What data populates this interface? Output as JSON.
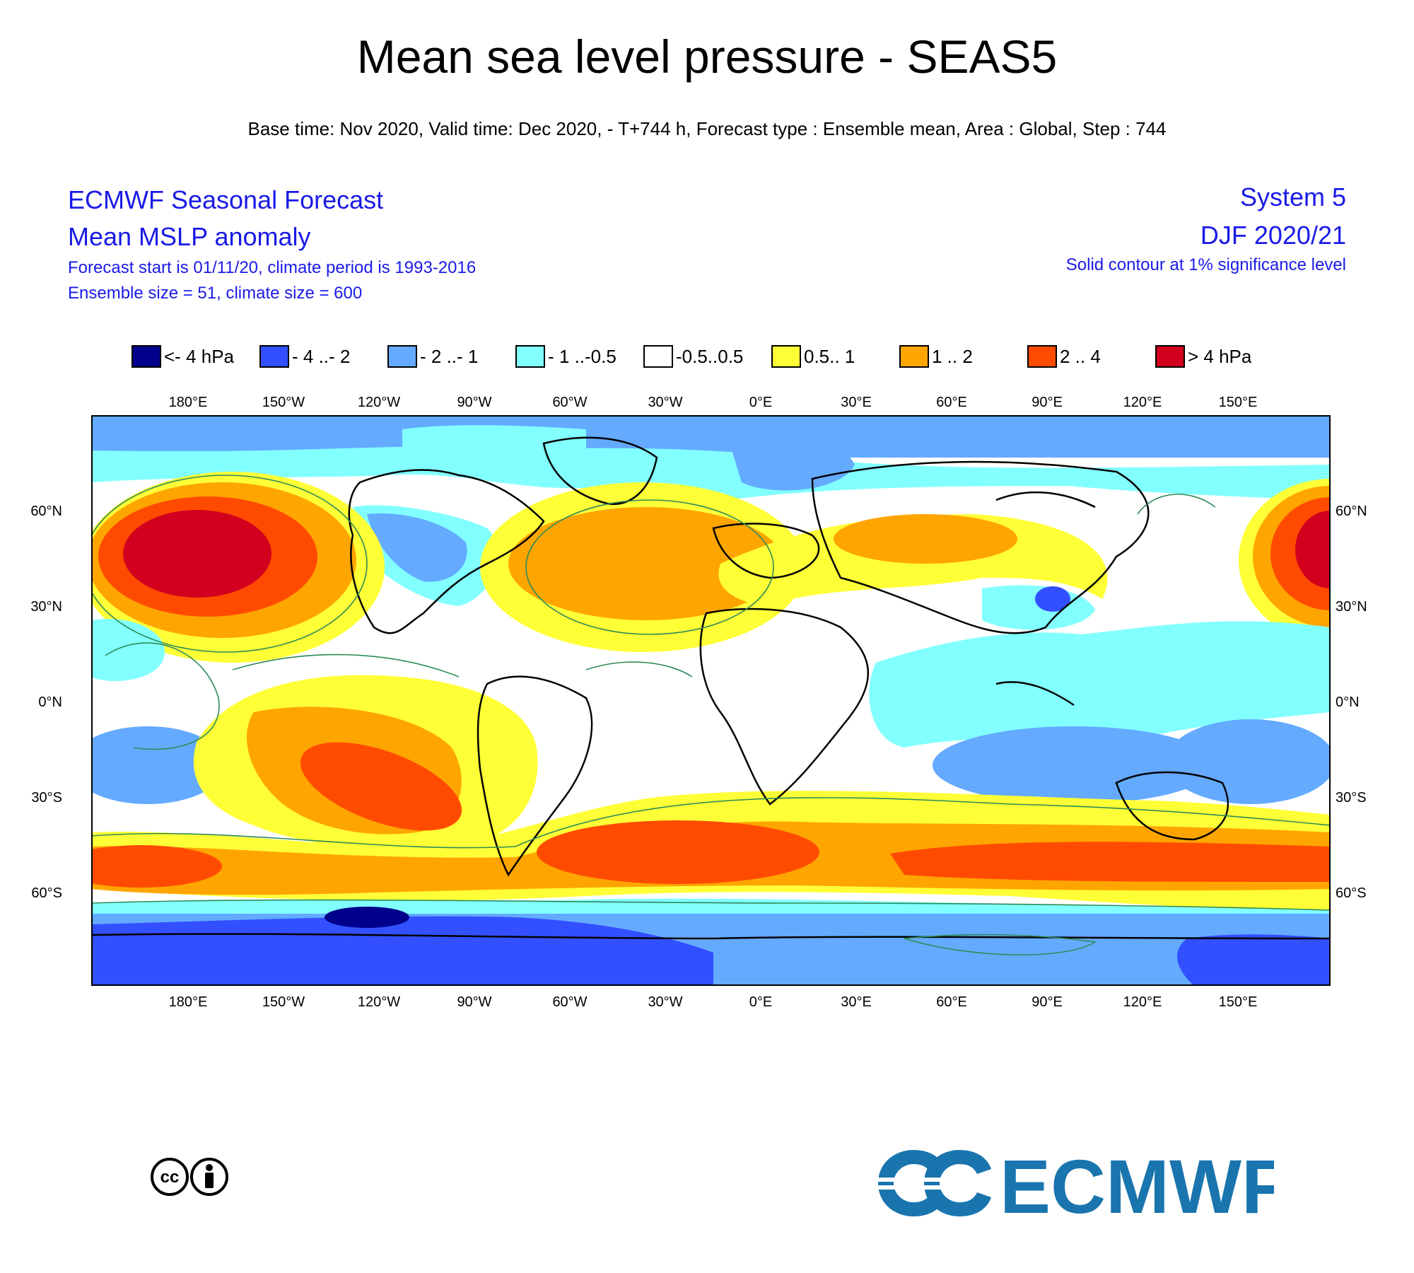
{
  "title": "Mean sea level pressure - SEAS5",
  "subtitle": "Base time: Nov 2020, Valid time: Dec 2020, - T+744 h, Forecast type : Ensemble mean, Area : Global, Step : 744",
  "header_left": {
    "line1": "ECMWF Seasonal Forecast",
    "line2": "Mean MSLP anomaly",
    "line3": "Forecast start is 01/11/20, climate period is 1993-2016",
    "line4": "Ensemble size = 51, climate size = 600"
  },
  "header_right": {
    "line1": "System 5",
    "line2": "DJF 2020/21",
    "line3": "Solid contour at 1% significance level"
  },
  "legend": [
    {
      "label": "<- 4 hPa",
      "color": "#00008c"
    },
    {
      "label": "- 4 ..- 2",
      "color": "#3250ff"
    },
    {
      "label": "- 2 ..- 1",
      "color": "#64aaff"
    },
    {
      "label": "- 1 ..-0.5",
      "color": "#82ffff"
    },
    {
      "label": "-0.5..0.5",
      "color": "#ffffff"
    },
    {
      "label": "0.5.. 1",
      "color": "#ffff37"
    },
    {
      "label": "1 .. 2",
      "color": "#ffa500"
    },
    {
      "label": "2 .. 4",
      "color": "#ff4b00"
    },
    {
      "label": ">  4 hPa",
      "color": "#d2001e"
    }
  ],
  "axes": {
    "lon_ticks": [
      "180°E",
      "150°W",
      "120°W",
      "90°W",
      "60°W",
      "30°W",
      "0°E",
      "30°E",
      "60°E",
      "90°E",
      "120°E",
      "150°E"
    ],
    "lat_ticks": [
      "60°N",
      "30°N",
      "0°N",
      "30°S",
      "60°S"
    ]
  },
  "logo": {
    "text": "ECMWF",
    "color": "#1a75ae"
  },
  "license_icon": "cc-by-icon",
  "colors": {
    "title_blue": "#1a1ae6",
    "contour_green": "#2e8b57"
  }
}
